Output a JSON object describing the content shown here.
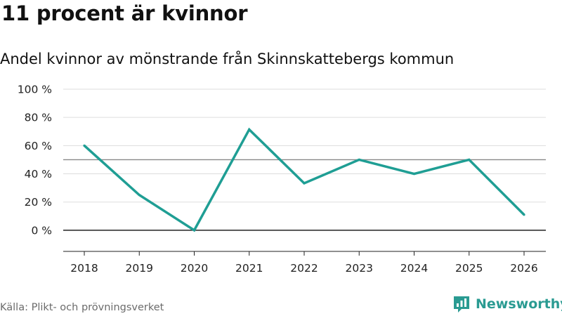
{
  "title": "11 procent är kvinnor",
  "subtitle": "Andel kvinnor av mönstrande från Skinnskattebergs kommun",
  "source": "Källa: Plikt- och prövningsverket",
  "brand": {
    "name": "Newsworthy",
    "color": "#2a9b92"
  },
  "chart_data": {
    "type": "line",
    "title": "11 procent är kvinnor",
    "subtitle": "Andel kvinnor av mönstrande från Skinnskattebergs kommun",
    "xlabel": "",
    "ylabel": "",
    "categories": [
      "2018",
      "2019",
      "2020",
      "2021",
      "2022",
      "2023",
      "2024",
      "2025",
      "2026"
    ],
    "series": [
      {
        "name": "Andel kvinnor",
        "values": [
          60,
          25,
          0,
          71.4,
          33.3,
          50,
          40,
          50,
          11
        ],
        "color": "#1f9e94"
      }
    ],
    "reference_line": {
      "value": 50,
      "color": "#888888"
    },
    "ylim": [
      -15,
      100
    ],
    "yticks": [
      0,
      20,
      40,
      60,
      80,
      100
    ],
    "ytick_labels": [
      "0 %",
      "20 %",
      "40 %",
      "60 %",
      "80 %",
      "100 %"
    ],
    "grid": true
  }
}
